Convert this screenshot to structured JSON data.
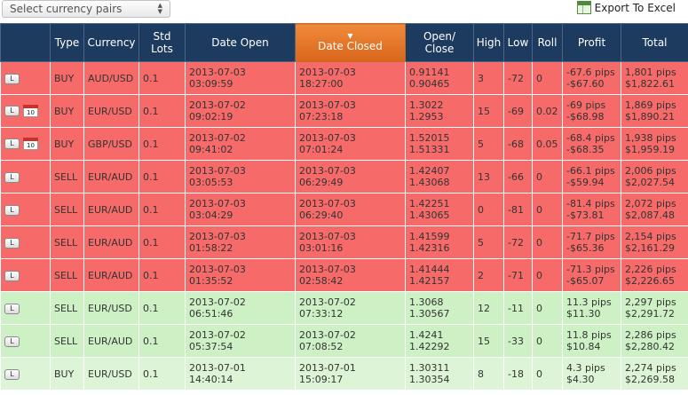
{
  "toolbar": {
    "currency_select_placeholder": "Select currency pairs",
    "export_label": "Export To Excel"
  },
  "icons": {
    "select": "up-down-arrows-icon",
    "export": "excel-icon",
    "calendar": "calendar-icon",
    "row_button": "trade-detail-button"
  },
  "colors": {
    "header": "#1d3a5f",
    "sorted_header": "#e87b2e",
    "loss_row": "#f66a6a",
    "gain_row": "#cdf1c5"
  },
  "table": {
    "headers": {
      "type": "Type",
      "currency": "Currency",
      "std_lots": "Std Lots",
      "date_open": "Date Open",
      "date_closed": "Date Closed",
      "open_close": "Open/ Close",
      "high": "High",
      "low": "Low",
      "roll": "Roll",
      "profit": "Profit",
      "total": "Total"
    },
    "sorted_column": "date_closed",
    "rows": [
      {
        "button": "L",
        "calendar": "",
        "type": "BUY",
        "currency": "AUD/USD",
        "lots": "0.1",
        "open_date": "2013-07-03",
        "open_time": "03:09:59",
        "close_date": "2013-07-03",
        "close_time": "18:27:00",
        "open_price": "0.91141",
        "close_price": "0.90465",
        "high": "3",
        "low": "-72",
        "roll": "0",
        "profit_pips": "-67.6 pips",
        "profit_usd": "-$67.60",
        "total_pips": "1,801 pips",
        "total_usd": "$1,822.61",
        "status": "loss"
      },
      {
        "button": "L",
        "calendar": "10",
        "type": "BUY",
        "currency": "EUR/USD",
        "lots": "0.1",
        "open_date": "2013-07-02",
        "open_time": "09:02:19",
        "close_date": "2013-07-03",
        "close_time": "07:23:18",
        "open_price": "1.3022",
        "close_price": "1.2953",
        "high": "15",
        "low": "-69",
        "roll": "0.02",
        "profit_pips": "-69 pips",
        "profit_usd": "-$68.98",
        "total_pips": "1,869 pips",
        "total_usd": "$1,890.21",
        "status": "loss"
      },
      {
        "button": "L",
        "calendar": "10",
        "type": "BUY",
        "currency": "GBP/USD",
        "lots": "0.1",
        "open_date": "2013-07-02",
        "open_time": "09:41:02",
        "close_date": "2013-07-03",
        "close_time": "07:01:24",
        "open_price": "1.52015",
        "close_price": "1.51331",
        "high": "5",
        "low": "-68",
        "roll": "0.05",
        "profit_pips": "-68.4 pips",
        "profit_usd": "-$68.35",
        "total_pips": "1,938 pips",
        "total_usd": "$1,959.19",
        "status": "loss"
      },
      {
        "button": "L",
        "calendar": "",
        "type": "SELL",
        "currency": "EUR/AUD",
        "lots": "0.1",
        "open_date": "2013-07-03",
        "open_time": "03:05:53",
        "close_date": "2013-07-03",
        "close_time": "06:29:49",
        "open_price": "1.42407",
        "close_price": "1.43068",
        "high": "13",
        "low": "-66",
        "roll": "0",
        "profit_pips": "-66.1 pips",
        "profit_usd": "-$59.94",
        "total_pips": "2,006 pips",
        "total_usd": "$2,027.54",
        "status": "loss"
      },
      {
        "button": "L",
        "calendar": "",
        "type": "SELL",
        "currency": "EUR/AUD",
        "lots": "0.1",
        "open_date": "2013-07-03",
        "open_time": "03:04:29",
        "close_date": "2013-07-03",
        "close_time": "06:29:40",
        "open_price": "1.42251",
        "close_price": "1.43065",
        "high": "0",
        "low": "-81",
        "roll": "0",
        "profit_pips": "-81.4 pips",
        "profit_usd": "-$73.81",
        "total_pips": "2,072 pips",
        "total_usd": "$2,087.48",
        "status": "loss"
      },
      {
        "button": "L",
        "calendar": "",
        "type": "SELL",
        "currency": "EUR/AUD",
        "lots": "0.1",
        "open_date": "2013-07-03",
        "open_time": "01:58:22",
        "close_date": "2013-07-03",
        "close_time": "03:01:16",
        "open_price": "1.41599",
        "close_price": "1.42316",
        "high": "5",
        "low": "-72",
        "roll": "0",
        "profit_pips": "-71.7 pips",
        "profit_usd": "-$65.36",
        "total_pips": "2,154 pips",
        "total_usd": "$2,161.29",
        "status": "loss"
      },
      {
        "button": "L",
        "calendar": "",
        "type": "SELL",
        "currency": "EUR/AUD",
        "lots": "0.1",
        "open_date": "2013-07-03",
        "open_time": "01:35:52",
        "close_date": "2013-07-03",
        "close_time": "02:58:42",
        "open_price": "1.41444",
        "close_price": "1.42157",
        "high": "2",
        "low": "-71",
        "roll": "0",
        "profit_pips": "-71.3 pips",
        "profit_usd": "-$65.07",
        "total_pips": "2,226 pips",
        "total_usd": "$2,226.65",
        "status": "loss"
      },
      {
        "button": "L",
        "calendar": "",
        "type": "SELL",
        "currency": "EUR/USD",
        "lots": "0.1",
        "open_date": "2013-07-02",
        "open_time": "06:51:46",
        "close_date": "2013-07-02",
        "close_time": "07:33:12",
        "open_price": "1.3068",
        "close_price": "1.30567",
        "high": "12",
        "low": "-11",
        "roll": "0",
        "profit_pips": "11.3 pips",
        "profit_usd": "$11.30",
        "total_pips": "2,297 pips",
        "total_usd": "$2,291.72",
        "status": "gain"
      },
      {
        "button": "L",
        "calendar": "",
        "type": "SELL",
        "currency": "EUR/AUD",
        "lots": "0.1",
        "open_date": "2013-07-02",
        "open_time": "05:37:54",
        "close_date": "2013-07-02",
        "close_time": "07:08:52",
        "open_price": "1.4241",
        "close_price": "1.42292",
        "high": "15",
        "low": "-33",
        "roll": "0",
        "profit_pips": "11.8 pips",
        "profit_usd": "$10.84",
        "total_pips": "2,286 pips",
        "total_usd": "$2,280.42",
        "status": "gain"
      },
      {
        "button": "L",
        "calendar": "",
        "type": "BUY",
        "currency": "EUR/USD",
        "lots": "0.1",
        "open_date": "2013-07-01",
        "open_time": "14:40:14",
        "close_date": "2013-07-01",
        "close_time": "15:09:17",
        "open_price": "1.30311",
        "close_price": "1.30354",
        "high": "8",
        "low": "-18",
        "roll": "0",
        "profit_pips": "4.3 pips",
        "profit_usd": "$4.30",
        "total_pips": "2,274 pips",
        "total_usd": "$2,269.58",
        "status": "gain"
      }
    ]
  }
}
